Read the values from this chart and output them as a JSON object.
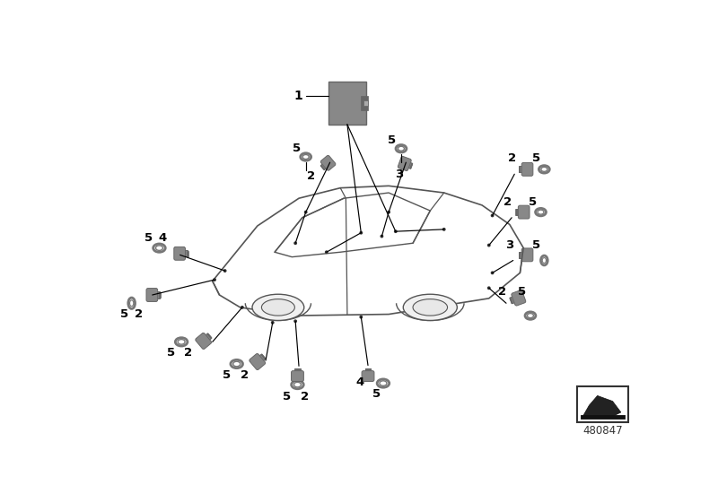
{
  "background_color": "#ffffff",
  "fig_width": 8.0,
  "fig_height": 5.6,
  "dpi": 100,
  "part_number": "480847",
  "car_fill": "#ffffff",
  "car_outline": "#555555",
  "sensor_color": "#888888",
  "sensor_dark": "#666666",
  "ring_color": "#777777",
  "line_color": "#000000",
  "label_fontsize": 9.5,
  "module_color": "#888888",
  "module_dark": "#666666"
}
